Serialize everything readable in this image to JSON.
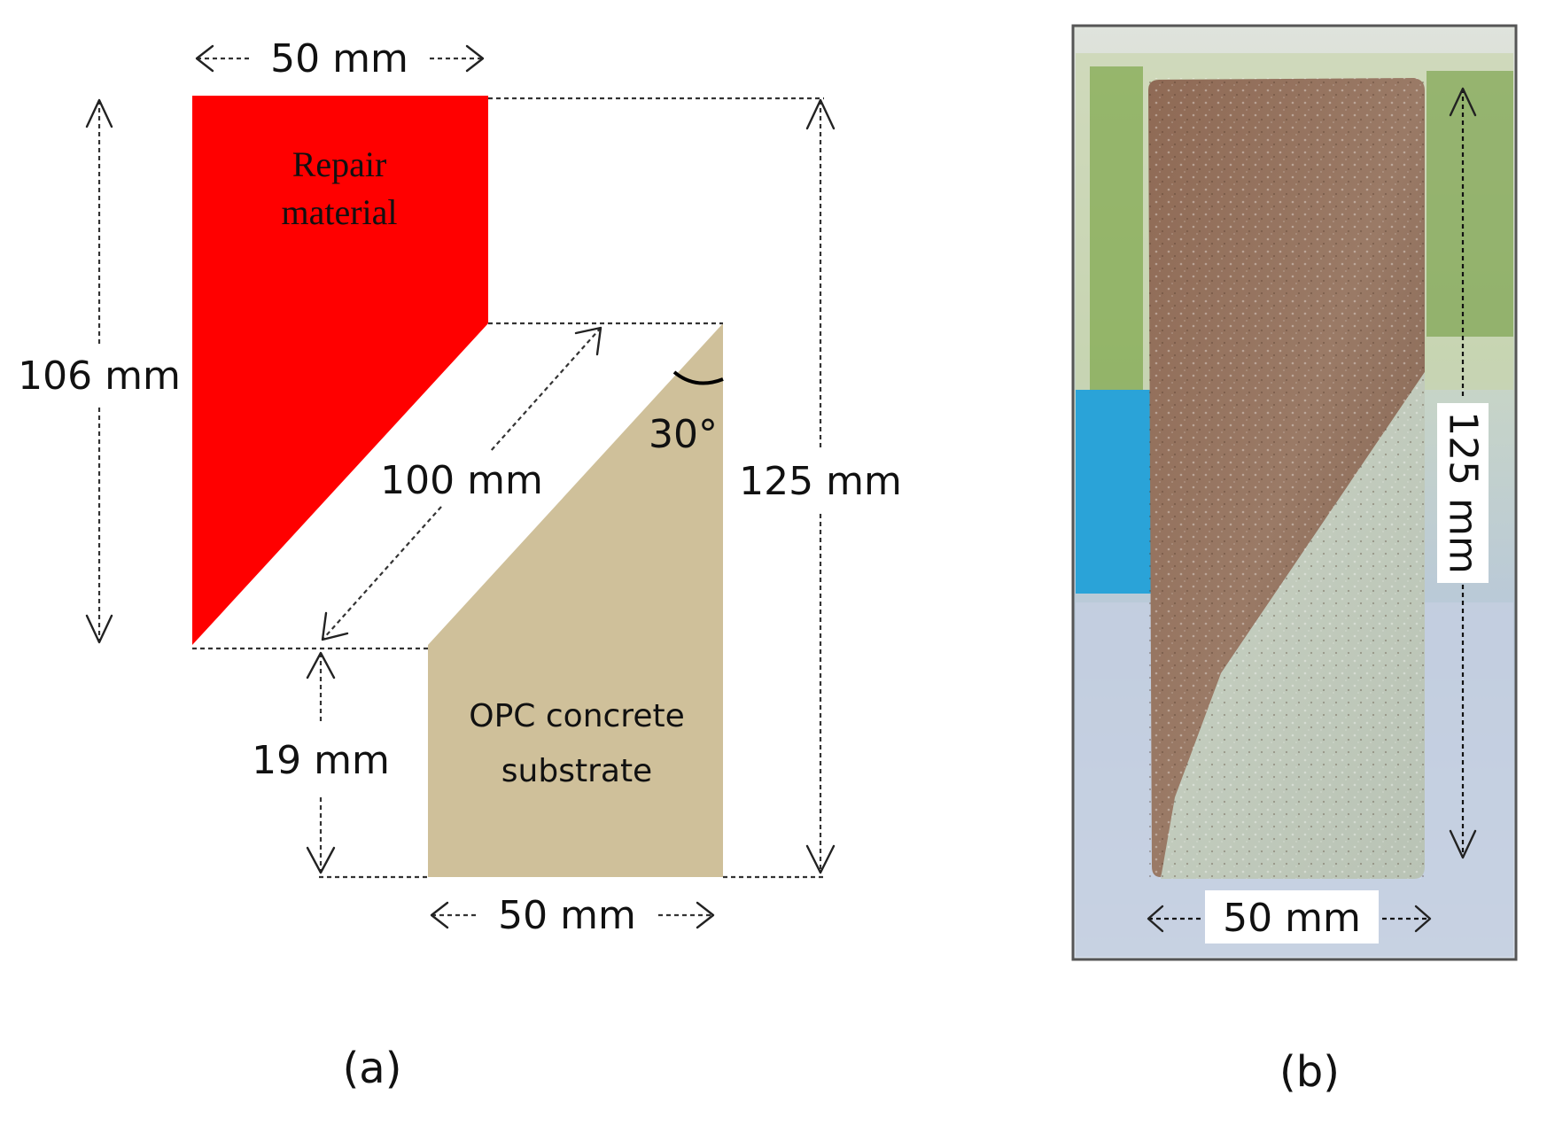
{
  "panel_a": {
    "top_width": "50 mm",
    "left_height": "106 mm",
    "right_height": "125 mm",
    "diagonal_length": "100 mm",
    "angle": "30°",
    "bottom_gap": "19 mm",
    "bottom_width": "50 mm",
    "repair_label_line1": "Repair",
    "repair_label_line2": "material",
    "substrate_label_line1": "OPC concrete",
    "substrate_label_line2": "substrate",
    "caption": "(a)",
    "colors": {
      "repair_material": "#ff0000",
      "substrate": "#cfc09a"
    }
  },
  "panel_b": {
    "height_label": "125 mm",
    "width_label": "50 mm",
    "caption": "(b)",
    "colors": {
      "repair_material": "#8a6a55",
      "substrate": "#c5cdc0"
    }
  }
}
